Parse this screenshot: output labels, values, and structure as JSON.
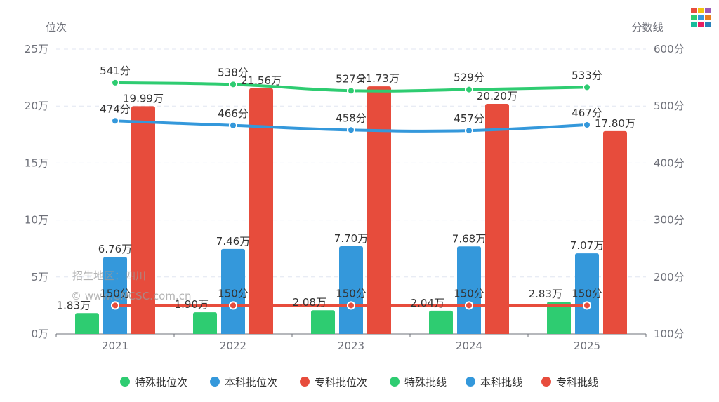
{
  "chart_data": {
    "type": "bar",
    "categories": [
      "2021",
      "2022",
      "2023",
      "2024",
      "2025"
    ],
    "y_left": {
      "label": "位次",
      "range": [
        0,
        25
      ],
      "ticks": [
        0,
        5,
        10,
        15,
        20,
        25
      ],
      "tick_labels": [
        "0万",
        "5万",
        "10万",
        "15万",
        "20万",
        "25万"
      ]
    },
    "y_right": {
      "label": "分数线",
      "range": [
        100,
        600
      ],
      "ticks": [
        100,
        200,
        300,
        400,
        500,
        600
      ],
      "tick_labels": [
        "100分",
        "200分",
        "300分",
        "400分",
        "500分",
        "600分"
      ]
    },
    "grid": true,
    "legend_position": "bottom",
    "bar_series": [
      {
        "name": "特殊批位次",
        "color": "#2ecc71",
        "values": [
          1.83,
          1.9,
          2.08,
          2.04,
          2.83
        ],
        "labels": [
          "1.83万",
          "1.90万",
          "2.08万",
          "2.04万",
          "2.83万"
        ]
      },
      {
        "name": "本科批位次",
        "color": "#3498db",
        "values": [
          6.76,
          7.46,
          7.7,
          7.68,
          7.07
        ],
        "labels": [
          "6.76万",
          "7.46万",
          "7.70万",
          "7.68万",
          "7.07万"
        ]
      },
      {
        "name": "专科批位次",
        "color": "#e74c3c",
        "values": [
          19.99,
          21.56,
          21.73,
          20.2,
          17.8
        ],
        "labels": [
          "19.99万",
          "21.56万",
          "21.73万",
          "20.20万",
          "17.80万"
        ]
      }
    ],
    "line_series": [
      {
        "name": "特殊批线",
        "color": "#2ecc71",
        "values": [
          541,
          538,
          527,
          529,
          533
        ],
        "labels": [
          "541分",
          "538分",
          "527分",
          "529分",
          "533分"
        ]
      },
      {
        "name": "本科批线",
        "color": "#3498db",
        "values": [
          474,
          466,
          458,
          457,
          467
        ],
        "labels": [
          "474分",
          "466分",
          "458分",
          "457分",
          "467分"
        ]
      },
      {
        "name": "专科批线",
        "color": "#e74c3c",
        "values": [
          150,
          150,
          150,
          150,
          150
        ],
        "labels": [
          "150分",
          "150分",
          "150分",
          "150分",
          "150分"
        ]
      }
    ]
  },
  "watermark": {
    "region": "招生地区：四川",
    "site": "© www.CNCSC.com.cn"
  }
}
